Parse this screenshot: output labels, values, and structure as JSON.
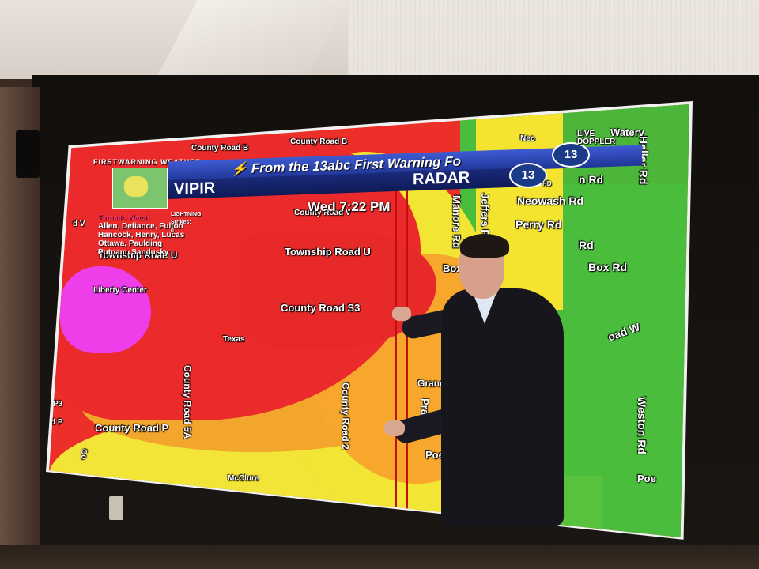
{
  "header": {
    "firstwarning": "FIRSTWARNING WEATHER",
    "banner": "From the 13abc First Warning Fo",
    "vipir": "VIPIR",
    "radar": "RADAR",
    "time": "Wed 7:22 PM",
    "logo_top": "13",
    "logo_bottom": "13"
  },
  "corner": {
    "live": "LIVE",
    "doppler": "DOPPLER",
    "hd": "HD"
  },
  "sidebar": {
    "tornado_watch": "Tornado Watch",
    "lightning": "LIGHTNING",
    "strikes": "Strikes: 0",
    "counties": [
      "Allen, Defiance, Fulton",
      "Hancock, Henry, Lucas",
      "Ottawa, Paulding",
      "Putnam, Sandusky"
    ]
  },
  "roads": {
    "county_road_b": "County Road B",
    "county_road_b2": "County Road B",
    "county_road_v": "County Road V",
    "township_road_u_left": "Township Road U",
    "township_road_u": "Township Road U",
    "county_road_s3": "County Road S3",
    "texas": "Texas",
    "liberty_center": "Liberty Center",
    "county_road_5a": "County Road 5A",
    "county_road_p": "County Road P",
    "county_road_2": "County Road 2",
    "mcclure": "McClure",
    "grand_rapids": "Grand Rapids",
    "pratt_ln": "Pratt Ln",
    "poe_rd": "Poe Rd",
    "manore_rd": "Manore Rd",
    "jeffers_rd": "Jeffers Rd",
    "box_rd": "Box Rd",
    "box_rd_right": "Box Rd",
    "neowash_rd": "Neowash Rd",
    "perry_rd": "Perry Rd",
    "heller_rd": "Heller Rd",
    "waterv": "Waterv",
    "weston_rd": "Weston Rd",
    "poe_right": "Poe",
    "road_w": "oad W",
    "rd_right": "Rd",
    "n_rd": "n Rd",
    "d_v": "d V",
    "p3": "P3",
    "d_p": "d P",
    "co": "Co",
    "neo": "Neo"
  },
  "colors": {
    "heavy": "#ea2a2b",
    "moderate": "#f6a72c",
    "light": "#f2e534",
    "very_light": "#4bbd3d",
    "extreme": "#ee3ee9"
  }
}
